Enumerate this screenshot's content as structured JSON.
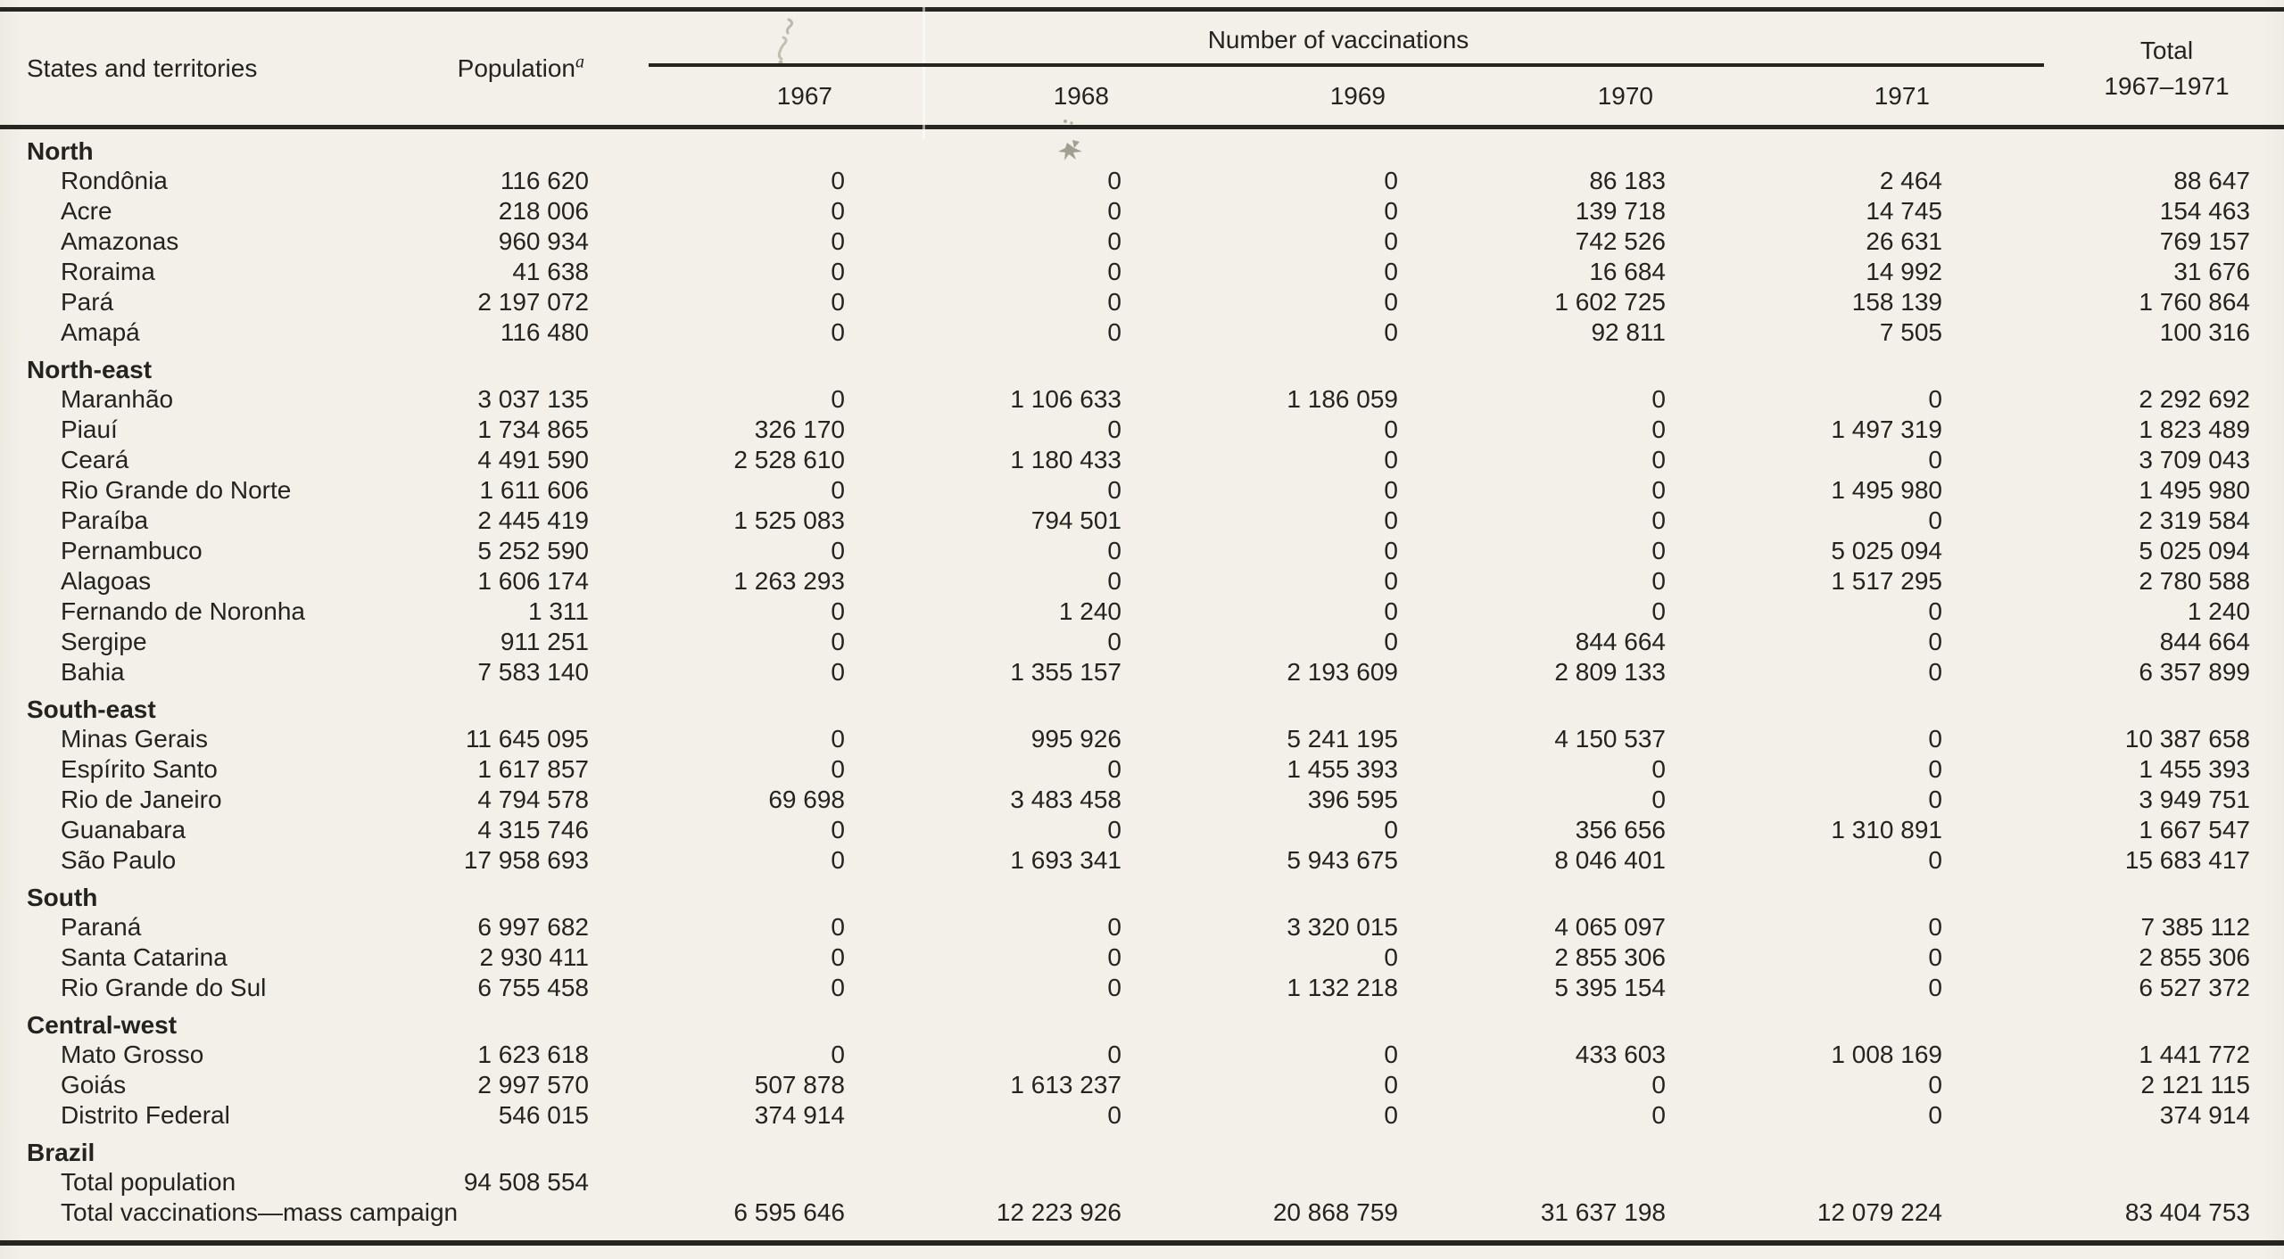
{
  "page": {
    "background_color": "#f2f0e8",
    "text_color": "#24231f",
    "rule_color": "#26251f"
  },
  "table": {
    "col_headers": {
      "states": "States and territories",
      "population": "Population",
      "population_footnote": "a",
      "vaccinations_group": "Number of vaccinations",
      "years": [
        "1967",
        "1968",
        "1969",
        "1970",
        "1971"
      ],
      "total_line1": "Total",
      "total_line2": "1967–1971"
    },
    "sections": [
      {
        "name": "North",
        "rows": [
          {
            "label": "Rondônia",
            "population": "116 620",
            "values": [
              "0",
              "0",
              "0",
              "86 183",
              "2 464"
            ],
            "total": "88 647"
          },
          {
            "label": "Acre",
            "population": "218 006",
            "values": [
              "0",
              "0",
              "0",
              "139 718",
              "14 745"
            ],
            "total": "154 463"
          },
          {
            "label": "Amazonas",
            "population": "960 934",
            "values": [
              "0",
              "0",
              "0",
              "742 526",
              "26 631"
            ],
            "total": "769 157"
          },
          {
            "label": "Roraima",
            "population": "41 638",
            "values": [
              "0",
              "0",
              "0",
              "16 684",
              "14 992"
            ],
            "total": "31 676"
          },
          {
            "label": "Pará",
            "population": "2 197 072",
            "values": [
              "0",
              "0",
              "0",
              "1 602 725",
              "158 139"
            ],
            "total": "1 760 864"
          },
          {
            "label": "Amapá",
            "population": "116 480",
            "values": [
              "0",
              "0",
              "0",
              "92 811",
              "7 505"
            ],
            "total": "100 316"
          }
        ]
      },
      {
        "name": "North-east",
        "rows": [
          {
            "label": "Maranhão",
            "population": "3 037 135",
            "values": [
              "0",
              "1 106 633",
              "1 186 059",
              "0",
              "0"
            ],
            "total": "2 292 692"
          },
          {
            "label": "Piauí",
            "population": "1 734 865",
            "values": [
              "326 170",
              "0",
              "0",
              "0",
              "1 497 319"
            ],
            "total": "1 823 489"
          },
          {
            "label": "Ceará",
            "population": "4 491 590",
            "values": [
              "2 528 610",
              "1 180 433",
              "0",
              "0",
              "0"
            ],
            "total": "3 709 043"
          },
          {
            "label": "Rio Grande do Norte",
            "population": "1 611 606",
            "values": [
              "0",
              "0",
              "0",
              "0",
              "1 495 980"
            ],
            "total": "1 495 980"
          },
          {
            "label": "Paraíba",
            "population": "2 445 419",
            "values": [
              "1 525 083",
              "794 501",
              "0",
              "0",
              "0"
            ],
            "total": "2 319 584"
          },
          {
            "label": "Pernambuco",
            "population": "5 252 590",
            "values": [
              "0",
              "0",
              "0",
              "0",
              "5 025 094"
            ],
            "total": "5 025 094"
          },
          {
            "label": "Alagoas",
            "population": "1 606 174",
            "values": [
              "1 263 293",
              "0",
              "0",
              "0",
              "1 517 295"
            ],
            "total": "2 780 588"
          },
          {
            "label": "Fernando de Noronha",
            "population": "1 311",
            "values": [
              "0",
              "1 240",
              "0",
              "0",
              "0"
            ],
            "total": "1 240"
          },
          {
            "label": "Sergipe",
            "population": "911 251",
            "values": [
              "0",
              "0",
              "0",
              "844 664",
              "0"
            ],
            "total": "844 664"
          },
          {
            "label": "Bahia",
            "population": "7 583 140",
            "values": [
              "0",
              "1 355 157",
              "2 193 609",
              "2 809 133",
              "0"
            ],
            "total": "6 357 899"
          }
        ]
      },
      {
        "name": "South-east",
        "rows": [
          {
            "label": "Minas Gerais",
            "population": "11 645 095",
            "values": [
              "0",
              "995 926",
              "5 241 195",
              "4 150 537",
              "0"
            ],
            "total": "10 387 658"
          },
          {
            "label": "Espírito Santo",
            "population": "1 617 857",
            "values": [
              "0",
              "0",
              "1 455 393",
              "0",
              "0"
            ],
            "total": "1 455 393"
          },
          {
            "label": "Rio de Janeiro",
            "population": "4 794 578",
            "values": [
              "69 698",
              "3 483 458",
              "396 595",
              "0",
              "0"
            ],
            "total": "3 949 751"
          },
          {
            "label": "Guanabara",
            "population": "4 315 746",
            "values": [
              "0",
              "0",
              "0",
              "356 656",
              "1 310 891"
            ],
            "total": "1 667 547"
          },
          {
            "label": "São Paulo",
            "population": "17 958 693",
            "values": [
              "0",
              "1 693 341",
              "5 943 675",
              "8 046 401",
              "0"
            ],
            "total": "15 683 417"
          }
        ]
      },
      {
        "name": "South",
        "rows": [
          {
            "label": "Paraná",
            "population": "6 997 682",
            "values": [
              "0",
              "0",
              "3 320 015",
              "4 065 097",
              "0"
            ],
            "total": "7 385 112"
          },
          {
            "label": "Santa Catarina",
            "population": "2 930 411",
            "values": [
              "0",
              "0",
              "0",
              "2 855 306",
              "0"
            ],
            "total": "2 855 306"
          },
          {
            "label": "Rio Grande do Sul",
            "population": "6 755 458",
            "values": [
              "0",
              "0",
              "1 132 218",
              "5 395 154",
              "0"
            ],
            "total": "6 527 372"
          }
        ]
      },
      {
        "name": "Central-west",
        "rows": [
          {
            "label": "Mato Grosso",
            "population": "1 623 618",
            "values": [
              "0",
              "0",
              "0",
              "433 603",
              "1 008 169"
            ],
            "total": "1 441 772"
          },
          {
            "label": "Goiás",
            "population": "2 997 570",
            "values": [
              "507 878",
              "1 613 237",
              "0",
              "0",
              "0"
            ],
            "total": "2 121 115"
          },
          {
            "label": "Distrito Federal",
            "population": "546 015",
            "values": [
              "374 914",
              "0",
              "0",
              "0",
              "0"
            ],
            "total": "374 914"
          }
        ]
      },
      {
        "name": "Brazil",
        "rows": [
          {
            "label": "Total population",
            "population": "94 508 554",
            "values": [
              "",
              "",
              "",
              "",
              ""
            ],
            "total": ""
          },
          {
            "label": "Total vaccinations—mass campaign",
            "population": "",
            "values": [
              "6 595 646",
              "12 223 926",
              "20 868 759",
              "31 637 198",
              "12 079 224"
            ],
            "total": "83 404 753"
          }
        ]
      }
    ]
  }
}
